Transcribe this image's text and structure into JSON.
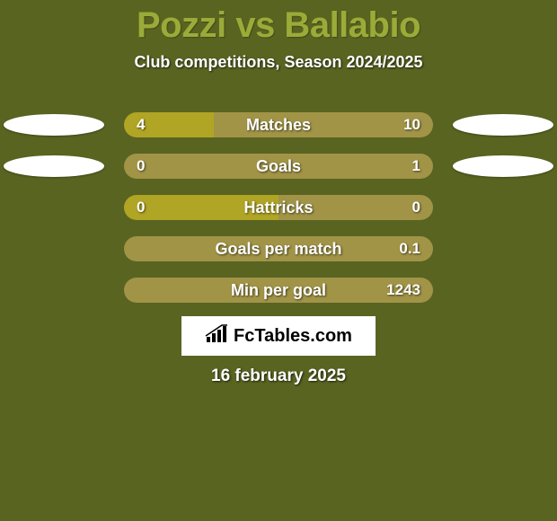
{
  "background_color": "#596421",
  "title": {
    "text": "Pozzi vs Ballabio",
    "color": "#9bab38"
  },
  "subtitle": "Club competitions, Season 2024/2025",
  "date": "16 february 2025",
  "bar_colors": {
    "left": "#b0a524",
    "right": "#a19447"
  },
  "rows": [
    {
      "label": "Matches",
      "left": "4",
      "right": "10",
      "left_pct": 0.29,
      "show_left_badge": true,
      "show_right_badge": true
    },
    {
      "label": "Goals",
      "left": "0",
      "right": "1",
      "left_pct": 0.0,
      "show_left_badge": true,
      "show_right_badge": true
    },
    {
      "label": "Hattricks",
      "left": "0",
      "right": "0",
      "left_pct": 0.5,
      "show_left_badge": false,
      "show_right_badge": false
    },
    {
      "label": "Goals per match",
      "left": "",
      "right": "0.1",
      "left_pct": 0.0,
      "show_left_badge": false,
      "show_right_badge": false
    },
    {
      "label": "Min per goal",
      "left": "",
      "right": "1243",
      "left_pct": 0.0,
      "show_left_badge": false,
      "show_right_badge": false
    }
  ],
  "fctables_label": "FcTables.com"
}
